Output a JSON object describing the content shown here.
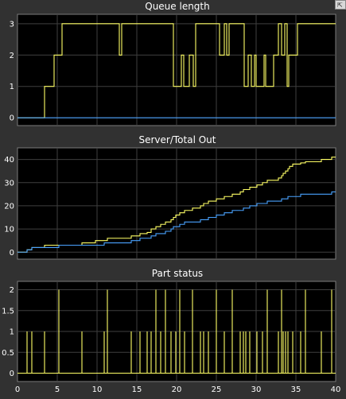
{
  "toolbar": {
    "undock_icon": "undock-icon",
    "undock_glyph": "⇱"
  },
  "chart_data": [
    {
      "type": "line",
      "title": "Queue length",
      "xlim": [
        0,
        40
      ],
      "ylim": [
        -0.25,
        3.3
      ],
      "yticks": [
        "0",
        "1",
        "2",
        "3"
      ],
      "series": [
        {
          "color": "#ffff66",
          "step": true,
          "points": [
            [
              0,
              0
            ],
            [
              3.4,
              0
            ],
            [
              3.4,
              1
            ],
            [
              4.6,
              1
            ],
            [
              4.6,
              2
            ],
            [
              5.6,
              2
            ],
            [
              5.6,
              3
            ],
            [
              8.6,
              3
            ],
            [
              8.6,
              3
            ],
            [
              9.0,
              3
            ],
            [
              9.0,
              3
            ],
            [
              12.8,
              3
            ],
            [
              12.8,
              2
            ],
            [
              13.1,
              2
            ],
            [
              13.1,
              3
            ],
            [
              19.6,
              3
            ],
            [
              19.6,
              1
            ],
            [
              20.6,
              1
            ],
            [
              20.6,
              2
            ],
            [
              20.9,
              2
            ],
            [
              20.9,
              1
            ],
            [
              21.6,
              1
            ],
            [
              21.6,
              2
            ],
            [
              22.1,
              2
            ],
            [
              22.1,
              1
            ],
            [
              22.4,
              1
            ],
            [
              22.4,
              3
            ],
            [
              23.5,
              3
            ],
            [
              23.5,
              3
            ],
            [
              25.4,
              3
            ],
            [
              25.4,
              2
            ],
            [
              26.0,
              2
            ],
            [
              26.0,
              3
            ],
            [
              26.3,
              3
            ],
            [
              26.3,
              2
            ],
            [
              26.6,
              2
            ],
            [
              26.6,
              3
            ],
            [
              28.5,
              3
            ],
            [
              28.5,
              1
            ],
            [
              29.0,
              1
            ],
            [
              29.0,
              2
            ],
            [
              29.4,
              2
            ],
            [
              29.4,
              1
            ],
            [
              29.8,
              1
            ],
            [
              29.8,
              2
            ],
            [
              30.0,
              2
            ],
            [
              30.0,
              1
            ],
            [
              31.0,
              1
            ],
            [
              31.0,
              2
            ],
            [
              31.2,
              2
            ],
            [
              31.2,
              1
            ],
            [
              32.2,
              1
            ],
            [
              32.2,
              2
            ],
            [
              32.8,
              2
            ],
            [
              32.8,
              3
            ],
            [
              33.2,
              3
            ],
            [
              33.2,
              2
            ],
            [
              33.6,
              2
            ],
            [
              33.6,
              3
            ],
            [
              33.9,
              3
            ],
            [
              33.9,
              1
            ],
            [
              34.1,
              1
            ],
            [
              34.1,
              2
            ],
            [
              35.2,
              2
            ],
            [
              35.2,
              3
            ],
            [
              40,
              3
            ]
          ]
        },
        {
          "color": "#4aa3ff",
          "step": true,
          "points": [
            [
              0,
              0
            ],
            [
              40,
              0
            ]
          ]
        }
      ]
    },
    {
      "type": "line",
      "title": "Server/Total Out",
      "xlim": [
        0,
        40
      ],
      "ylim": [
        -3,
        45
      ],
      "yticks": [
        "0",
        "10",
        "20",
        "30",
        "40"
      ],
      "series": [
        {
          "color": "#ffff66",
          "step": true,
          "points": [
            [
              0,
              0
            ],
            [
              1.2,
              0
            ],
            [
              1.2,
              1
            ],
            [
              1.8,
              1
            ],
            [
              1.8,
              2
            ],
            [
              3.4,
              2
            ],
            [
              3.4,
              3
            ],
            [
              5.2,
              3
            ],
            [
              5.2,
              3
            ],
            [
              8.1,
              3
            ],
            [
              8.1,
              4
            ],
            [
              9.8,
              4
            ],
            [
              9.8,
              5
            ],
            [
              10.9,
              5
            ],
            [
              10.9,
              5
            ],
            [
              11.3,
              5
            ],
            [
              11.3,
              6
            ],
            [
              14.3,
              6
            ],
            [
              14.3,
              7
            ],
            [
              15.4,
              7
            ],
            [
              15.4,
              8
            ],
            [
              16.3,
              8
            ],
            [
              16.3,
              8.5
            ],
            [
              16.8,
              8.5
            ],
            [
              16.8,
              10
            ],
            [
              17.4,
              10
            ],
            [
              17.4,
              11
            ],
            [
              18.0,
              11
            ],
            [
              18.0,
              12
            ],
            [
              18.6,
              12
            ],
            [
              18.6,
              13
            ],
            [
              19.3,
              13
            ],
            [
              19.3,
              14
            ],
            [
              19.6,
              14
            ],
            [
              19.6,
              15
            ],
            [
              19.9,
              15
            ],
            [
              19.9,
              16
            ],
            [
              20.4,
              16
            ],
            [
              20.4,
              17
            ],
            [
              21.0,
              17
            ],
            [
              21.0,
              18
            ],
            [
              22.0,
              18
            ],
            [
              22.0,
              19
            ],
            [
              23.0,
              19
            ],
            [
              23.0,
              20
            ],
            [
              23.4,
              20
            ],
            [
              23.4,
              21
            ],
            [
              24.0,
              21
            ],
            [
              24.0,
              22
            ],
            [
              25.0,
              22
            ],
            [
              25.0,
              23
            ],
            [
              26.0,
              23
            ],
            [
              26.0,
              24
            ],
            [
              27.0,
              24
            ],
            [
              27.0,
              25
            ],
            [
              28.0,
              25
            ],
            [
              28.0,
              26
            ],
            [
              28.4,
              26
            ],
            [
              28.4,
              27
            ],
            [
              29.2,
              27
            ],
            [
              29.2,
              28
            ],
            [
              30.1,
              28
            ],
            [
              30.1,
              29
            ],
            [
              30.8,
              29
            ],
            [
              30.8,
              30
            ],
            [
              31.4,
              30
            ],
            [
              31.4,
              31
            ],
            [
              32.8,
              31
            ],
            [
              32.8,
              32
            ],
            [
              33.2,
              32
            ],
            [
              33.2,
              33
            ],
            [
              33.4,
              33
            ],
            [
              33.4,
              34
            ],
            [
              33.7,
              34
            ],
            [
              33.7,
              35
            ],
            [
              34.0,
              35
            ],
            [
              34.0,
              36
            ],
            [
              34.2,
              36
            ],
            [
              34.2,
              37
            ],
            [
              34.6,
              37
            ],
            [
              34.6,
              38
            ],
            [
              35.6,
              38
            ],
            [
              35.6,
              38.5
            ],
            [
              36.2,
              38.5
            ],
            [
              36.2,
              39
            ],
            [
              38.2,
              39
            ],
            [
              38.2,
              40
            ],
            [
              39.5,
              40
            ],
            [
              39.5,
              41
            ],
            [
              40,
              41
            ]
          ]
        },
        {
          "color": "#4aa3ff",
          "step": true,
          "points": [
            [
              0,
              0
            ],
            [
              1.2,
              0
            ],
            [
              1.2,
              1
            ],
            [
              1.8,
              1
            ],
            [
              1.8,
              2
            ],
            [
              5.2,
              2
            ],
            [
              5.2,
              3
            ],
            [
              10.9,
              3
            ],
            [
              10.9,
              4
            ],
            [
              14.3,
              4
            ],
            [
              14.3,
              5
            ],
            [
              15.4,
              5
            ],
            [
              15.4,
              6
            ],
            [
              16.8,
              6
            ],
            [
              16.8,
              7
            ],
            [
              17.4,
              7
            ],
            [
              17.4,
              8
            ],
            [
              18.6,
              8
            ],
            [
              18.6,
              9
            ],
            [
              19.3,
              9
            ],
            [
              19.3,
              10
            ],
            [
              19.6,
              10
            ],
            [
              19.6,
              11
            ],
            [
              20.4,
              11
            ],
            [
              20.4,
              12
            ],
            [
              21.0,
              12
            ],
            [
              21.0,
              13
            ],
            [
              23.0,
              13
            ],
            [
              23.0,
              14
            ],
            [
              24.0,
              14
            ],
            [
              24.0,
              15
            ],
            [
              25.0,
              15
            ],
            [
              25.0,
              16
            ],
            [
              26.0,
              16
            ],
            [
              26.0,
              17
            ],
            [
              27.0,
              17
            ],
            [
              27.0,
              18
            ],
            [
              28.4,
              18
            ],
            [
              28.4,
              19
            ],
            [
              29.2,
              19
            ],
            [
              29.2,
              20
            ],
            [
              30.1,
              20
            ],
            [
              30.1,
              21
            ],
            [
              31.4,
              21
            ],
            [
              31.4,
              22
            ],
            [
              33.2,
              22
            ],
            [
              33.2,
              23
            ],
            [
              34.0,
              23
            ],
            [
              34.0,
              24
            ],
            [
              35.6,
              24
            ],
            [
              35.6,
              25
            ],
            [
              39.5,
              25
            ],
            [
              39.5,
              26
            ],
            [
              40,
              26
            ]
          ]
        }
      ]
    },
    {
      "type": "line",
      "title": "Part status",
      "xlim": [
        0,
        40
      ],
      "ylim": [
        -0.2,
        2.2
      ],
      "yticks": [
        "0",
        "0.5",
        "1",
        "1.5",
        "2"
      ],
      "series": [
        {
          "color": "#ffff66",
          "spikes": true,
          "spike_events": [
            [
              1.2,
              1
            ],
            [
              1.8,
              1
            ],
            [
              3.4,
              1
            ],
            [
              5.2,
              2
            ],
            [
              8.1,
              1
            ],
            [
              10.9,
              1
            ],
            [
              11.3,
              2
            ],
            [
              14.3,
              1
            ],
            [
              15.4,
              1
            ],
            [
              16.3,
              1
            ],
            [
              16.8,
              1
            ],
            [
              17.4,
              2
            ],
            [
              18.0,
              1
            ],
            [
              18.6,
              2
            ],
            [
              19.3,
              1
            ],
            [
              19.9,
              1
            ],
            [
              20.4,
              2
            ],
            [
              21.0,
              1
            ],
            [
              22.0,
              2
            ],
            [
              23.0,
              1
            ],
            [
              23.4,
              1
            ],
            [
              24.0,
              1
            ],
            [
              25.0,
              2
            ],
            [
              26.0,
              1
            ],
            [
              27.0,
              2
            ],
            [
              28.0,
              1
            ],
            [
              28.4,
              1
            ],
            [
              28.7,
              1
            ],
            [
              29.2,
              1
            ],
            [
              30.1,
              1
            ],
            [
              30.8,
              1
            ],
            [
              31.4,
              2
            ],
            [
              32.8,
              1
            ],
            [
              33.2,
              2
            ],
            [
              33.4,
              1
            ],
            [
              33.7,
              1
            ],
            [
              34.0,
              1
            ],
            [
              34.6,
              1
            ],
            [
              35.6,
              1
            ],
            [
              36.2,
              2
            ],
            [
              38.2,
              1
            ],
            [
              39.5,
              2
            ]
          ]
        }
      ]
    }
  ],
  "xticks": [
    "0",
    "5",
    "10",
    "15",
    "20",
    "25",
    "30",
    "35",
    "40"
  ]
}
